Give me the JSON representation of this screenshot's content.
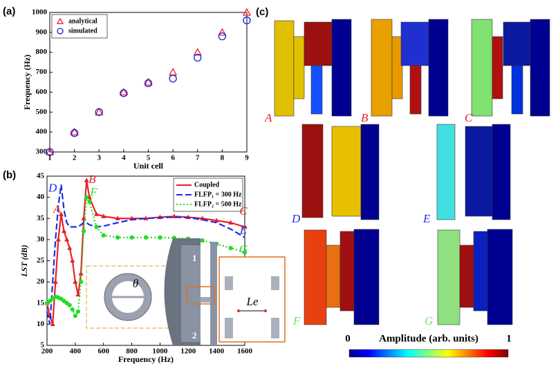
{
  "chart_data": [
    {
      "type": "scatter",
      "panel_label": "(a)",
      "xlabel": "Unit cell",
      "ylabel": "Frequency (Hz)",
      "x": [
        1,
        2,
        3,
        4,
        5,
        6,
        7,
        8,
        9
      ],
      "xlim": [
        1,
        9
      ],
      "ylim": [
        300,
        1000
      ],
      "xticks": [
        1,
        2,
        3,
        4,
        5,
        6,
        7,
        8,
        9
      ],
      "yticks": [
        300,
        400,
        500,
        600,
        700,
        800,
        900,
        1000
      ],
      "legend": "upper left",
      "series": [
        {
          "name": "analytical",
          "color": "#e8202a",
          "marker": "triangle",
          "values": [
            300,
            400,
            500,
            600,
            650,
            700,
            800,
            900,
            1000
          ]
        },
        {
          "name": "simulated",
          "color": "#1a1adc",
          "marker": "circle",
          "values": [
            300,
            395,
            500,
            595,
            645,
            668,
            773,
            880,
            960
          ]
        }
      ]
    },
    {
      "type": "line",
      "panel_label": "(b)",
      "xlabel": "Frequency (Hz)",
      "ylabel": "LST (dB)",
      "x": [
        200,
        220,
        240,
        260,
        280,
        300,
        320,
        340,
        360,
        380,
        400,
        420,
        440,
        460,
        480,
        500,
        550,
        600,
        700,
        800,
        900,
        1000,
        1100,
        1200,
        1300,
        1400,
        1500,
        1600
      ],
      "xlim": [
        200,
        1600
      ],
      "ylim": [
        5,
        45
      ],
      "xticks": [
        200,
        400,
        600,
        800,
        1000,
        1200,
        1400,
        1600
      ],
      "yticks": [
        5,
        10,
        15,
        20,
        25,
        30,
        35,
        40,
        45
      ],
      "legend": "upper right",
      "series": [
        {
          "name": "Coupled",
          "color": "#e8202a",
          "dash": "none",
          "marker": "triangle",
          "values": [
            15,
            12,
            10,
            20,
            30,
            36,
            32,
            30,
            28,
            25,
            20,
            17,
            22,
            35,
            44,
            40,
            36,
            35.5,
            35,
            35,
            35,
            35.3,
            35.5,
            35.3,
            35,
            34.5,
            34,
            33
          ]
        },
        {
          "name": "FLFP₁ = 300 Hz",
          "color": "#1a2ee6",
          "dash": "9,4",
          "marker": "none",
          "values": [
            13,
            10,
            20,
            30,
            38,
            43,
            37,
            34,
            33,
            33,
            33,
            33,
            33.5,
            34,
            34,
            33.5,
            33,
            33.2,
            34,
            34.7,
            35,
            35.2,
            35.3,
            35.2,
            34.7,
            34,
            32.5,
            30.5
          ]
        },
        {
          "name": "FLFP₂ = 500 Hz",
          "color": "#22dd22",
          "dash": "2,3",
          "marker": "circle",
          "values": [
            15,
            15.5,
            16,
            16.5,
            16.3,
            16,
            15.5,
            15,
            14.5,
            13.5,
            12,
            13,
            20,
            32,
            40,
            39,
            33,
            31,
            30.5,
            30.5,
            30.5,
            30.5,
            30.4,
            30.2,
            29.8,
            29,
            28,
            27
          ]
        }
      ],
      "annotations": [
        {
          "text": "A",
          "x": 270,
          "y": 37,
          "color": "#e8202a"
        },
        {
          "text": "B",
          "x": 520,
          "y": 44,
          "color": "#e8202a"
        },
        {
          "text": "C",
          "x": 1590,
          "y": 36.5,
          "color": "#e8202a"
        },
        {
          "text": "D",
          "x": 240,
          "y": 42,
          "color": "#1a2ee6"
        },
        {
          "text": "E",
          "x": 1590,
          "y": 32,
          "color": "#1a2ee6"
        },
        {
          "text": "F",
          "x": 530,
          "y": 41,
          "color": "#22dd22"
        },
        {
          "text": "G",
          "x": 1590,
          "y": 27.5,
          "color": "#22dd22"
        }
      ],
      "inset_labels": [
        "θ",
        "1",
        "2",
        "Le"
      ]
    }
  ],
  "panel_c": {
    "label": "(c)",
    "states": [
      "A",
      "B",
      "C",
      "D",
      "E",
      "F",
      "G"
    ],
    "state_colors": [
      "#e8202a",
      "#e8202a",
      "#e8202a",
      "#1a2ee6",
      "#1a2ee6",
      "#6ee06e",
      "#6ee06e"
    ],
    "colorbar": {
      "min": 0,
      "max": 1,
      "label": "Amplitude (arb. units)"
    }
  }
}
